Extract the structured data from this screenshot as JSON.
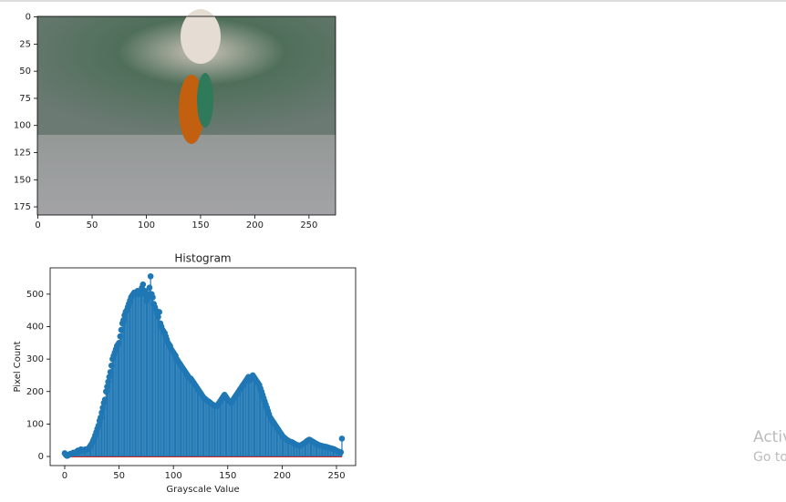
{
  "chart_data": [
    {
      "type": "image",
      "xlim": [
        -0.5,
        274.5
      ],
      "ylim": [
        182.5,
        -0.5
      ],
      "xticks": [
        0,
        50,
        100,
        150,
        200,
        250
      ],
      "yticks": [
        0,
        25,
        50,
        75,
        100,
        125,
        150,
        175
      ]
    },
    {
      "type": "stem",
      "title": "Histogram",
      "xlabel": "Grayscale Value",
      "ylabel": "Pixel Count",
      "color": "#1f77b4",
      "baseline_color": "#d62728",
      "xlim": [
        -13.4,
        267.6
      ],
      "ylim": [
        -28,
        581
      ],
      "xticks": [
        0,
        50,
        100,
        150,
        200,
        250
      ],
      "yticks": [
        0,
        100,
        200,
        300,
        400,
        500
      ],
      "x": [
        0,
        1,
        2,
        3,
        4,
        5,
        6,
        7,
        8,
        9,
        10,
        11,
        12,
        13,
        14,
        15,
        16,
        17,
        18,
        19,
        20,
        21,
        22,
        23,
        24,
        25,
        26,
        27,
        28,
        29,
        30,
        31,
        32,
        33,
        34,
        35,
        36,
        37,
        38,
        39,
        40,
        41,
        42,
        43,
        44,
        45,
        46,
        47,
        48,
        49,
        50,
        51,
        52,
        53,
        54,
        55,
        56,
        57,
        58,
        59,
        60,
        61,
        62,
        63,
        64,
        65,
        66,
        67,
        68,
        69,
        70,
        71,
        72,
        73,
        74,
        75,
        76,
        77,
        78,
        79,
        80,
        81,
        82,
        83,
        84,
        85,
        86,
        87,
        88,
        89,
        90,
        91,
        92,
        93,
        94,
        95,
        96,
        97,
        98,
        99,
        100,
        101,
        102,
        103,
        104,
        105,
        106,
        107,
        108,
        109,
        110,
        111,
        112,
        113,
        114,
        115,
        116,
        117,
        118,
        119,
        120,
        121,
        122,
        123,
        124,
        125,
        126,
        127,
        128,
        129,
        130,
        131,
        132,
        133,
        134,
        135,
        136,
        137,
        138,
        139,
        140,
        141,
        142,
        143,
        144,
        145,
        146,
        147,
        148,
        149,
        150,
        151,
        152,
        153,
        154,
        155,
        156,
        157,
        158,
        159,
        160,
        161,
        162,
        163,
        164,
        165,
        166,
        167,
        168,
        169,
        170,
        171,
        172,
        173,
        174,
        175,
        176,
        177,
        178,
        179,
        180,
        181,
        182,
        183,
        184,
        185,
        186,
        187,
        188,
        189,
        190,
        191,
        192,
        193,
        194,
        195,
        196,
        197,
        198,
        199,
        200,
        201,
        202,
        203,
        204,
        205,
        206,
        207,
        208,
        209,
        210,
        211,
        212,
        213,
        214,
        215,
        216,
        217,
        218,
        219,
        220,
        221,
        222,
        223,
        224,
        225,
        226,
        227,
        228,
        229,
        230,
        231,
        232,
        233,
        234,
        235,
        236,
        237,
        238,
        239,
        240,
        241,
        242,
        243,
        244,
        245,
        246,
        247,
        248,
        249,
        250,
        251,
        252,
        253,
        254,
        255
      ],
      "values": [
        10,
        5,
        2,
        3,
        6,
        8,
        8,
        10,
        12,
        9,
        12,
        15,
        18,
        15,
        20,
        22,
        20,
        18,
        20,
        22,
        20,
        22,
        25,
        30,
        35,
        40,
        48,
        55,
        65,
        75,
        85,
        95,
        110,
        120,
        135,
        150,
        165,
        175,
        200,
        215,
        230,
        245,
        260,
        280,
        300,
        310,
        320,
        330,
        340,
        345,
        350,
        370,
        390,
        410,
        420,
        435,
        445,
        450,
        460,
        470,
        480,
        490,
        495,
        500,
        505,
        500,
        505,
        510,
        505,
        500,
        510,
        520,
        530,
        500,
        510,
        480,
        490,
        500,
        520,
        555,
        500,
        490,
        470,
        460,
        450,
        440,
        430,
        445,
        410,
        400,
        390,
        385,
        380,
        370,
        360,
        350,
        345,
        340,
        330,
        325,
        320,
        315,
        310,
        300,
        295,
        290,
        285,
        280,
        275,
        270,
        265,
        260,
        255,
        250,
        245,
        240,
        240,
        235,
        230,
        225,
        220,
        215,
        210,
        205,
        200,
        195,
        190,
        185,
        180,
        178,
        175,
        172,
        170,
        168,
        165,
        162,
        160,
        158,
        156,
        155,
        155,
        160,
        165,
        170,
        175,
        180,
        185,
        190,
        185,
        180,
        175,
        170,
        168,
        165,
        170,
        175,
        180,
        185,
        190,
        195,
        200,
        205,
        210,
        215,
        220,
        225,
        230,
        235,
        240,
        245,
        240,
        235,
        245,
        250,
        245,
        240,
        235,
        230,
        225,
        220,
        210,
        200,
        190,
        180,
        170,
        160,
        150,
        140,
        130,
        120,
        115,
        110,
        105,
        100,
        95,
        90,
        85,
        80,
        75,
        70,
        65,
        60,
        58,
        55,
        52,
        50,
        48,
        46,
        45,
        44,
        42,
        40,
        38,
        36,
        35,
        34,
        33,
        34,
        36,
        38,
        40,
        42,
        45,
        48,
        50,
        52,
        50,
        48,
        46,
        44,
        42,
        40,
        38,
        36,
        35,
        34,
        33,
        32,
        31,
        30,
        30,
        29,
        28,
        27,
        26,
        25,
        24,
        23,
        22,
        20,
        18,
        16,
        15,
        14,
        13,
        55
      ]
    }
  ],
  "watermark": {
    "line1": "Activ",
    "line2": "Go to"
  }
}
